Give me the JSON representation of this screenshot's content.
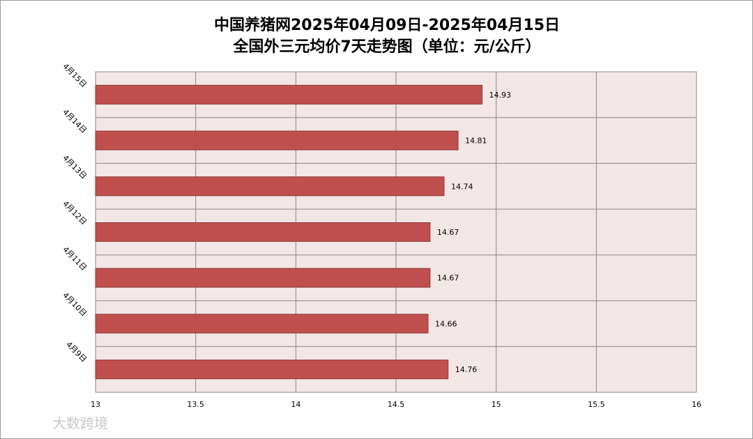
{
  "chart_data": {
    "type": "barh",
    "title": "中国养猪网2025年04月09日-2025年04月15日",
    "subtitle": "全国外三元均价7天走势图（单位：元/公斤）",
    "categories": [
      "4月15日",
      "4月14日",
      "4月13日",
      "4月12日",
      "4月11日",
      "4月10日",
      "4月9日"
    ],
    "values": [
      14.93,
      14.81,
      14.74,
      14.67,
      14.67,
      14.66,
      14.76
    ],
    "color": "#c0504d",
    "xlim": [
      13,
      16
    ],
    "xticks": [
      13,
      13.5,
      14,
      14.5,
      15,
      15.5,
      16
    ],
    "grid": true,
    "watermark": "大数跨境"
  }
}
